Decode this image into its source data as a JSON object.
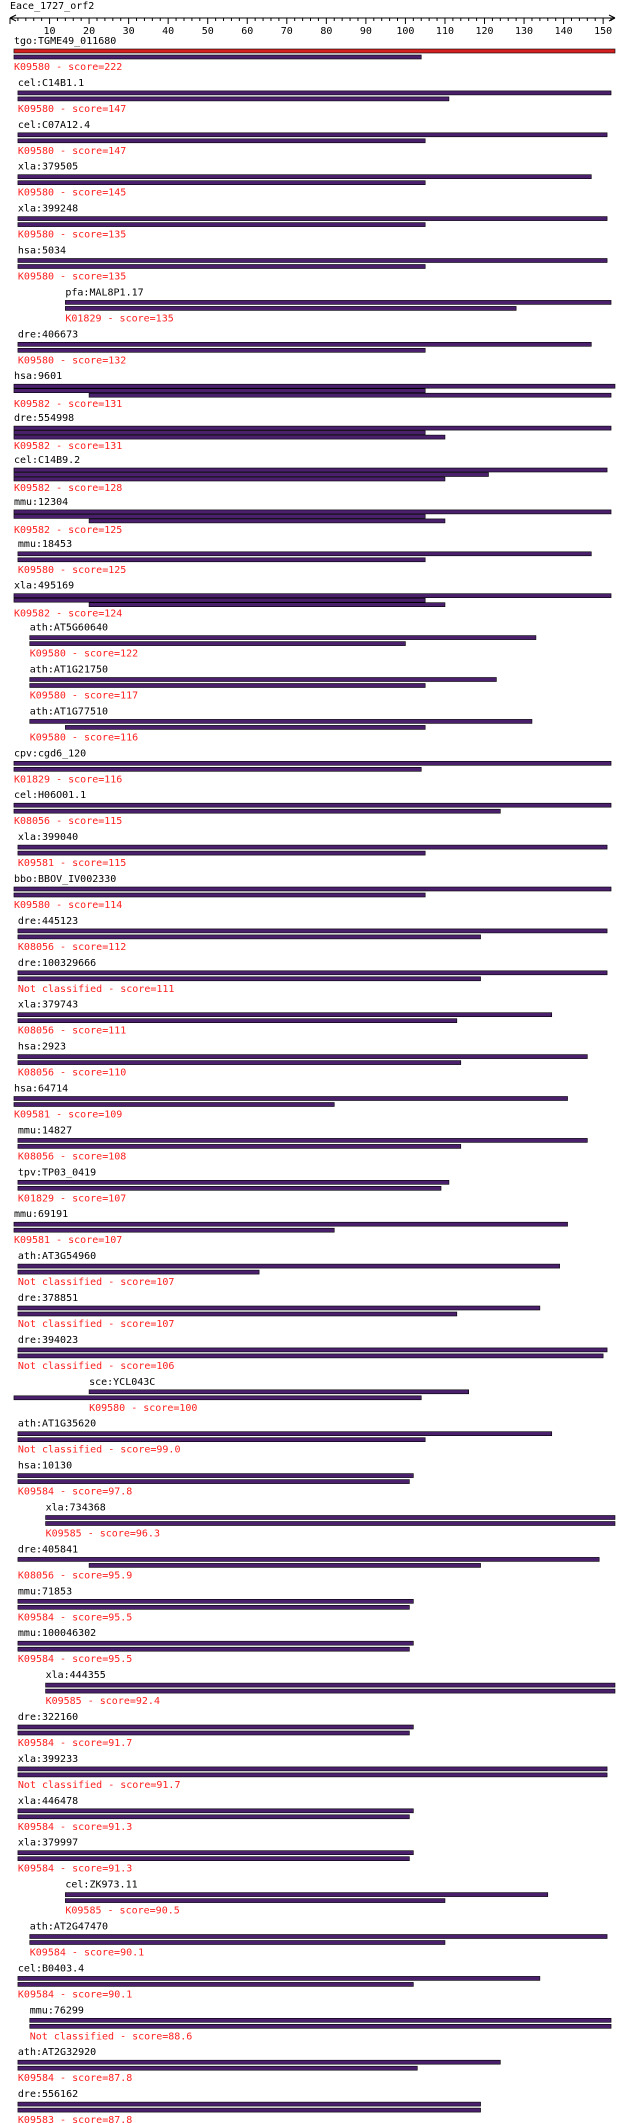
{
  "chart_data": {
    "type": "bar",
    "title": "Eace_1727_orf2",
    "xlim": [
      0,
      153
    ],
    "xticks": [
      10,
      20,
      30,
      40,
      50,
      60,
      70,
      80,
      90,
      100,
      110,
      120,
      130,
      140,
      150
    ],
    "colors": {
      "query_bar": "#d42020",
      "hit_bar": "#4a1f6b",
      "score_text": "#ff2020",
      "axis": "#000000"
    },
    "hits": [
      {
        "name": "tgo:TGME49_011680",
        "score_label": "K09580 - score=222",
        "query": [
          1,
          153
        ],
        "hit": [
          1,
          104
        ],
        "query_color": "red"
      },
      {
        "name": "cel:C14B1.1",
        "score_label": "K09580 - score=147",
        "query": [
          2,
          152
        ],
        "hit": [
          2,
          111
        ]
      },
      {
        "name": "cel:C07A12.4",
        "score_label": "K09580 - score=147",
        "query": [
          2,
          151
        ],
        "hit": [
          2,
          105
        ]
      },
      {
        "name": "xla:379505",
        "score_label": "K09580 - score=145",
        "query": [
          2,
          147
        ],
        "hit": [
          2,
          105
        ]
      },
      {
        "name": "xla:399248",
        "score_label": "K09580 - score=135",
        "query": [
          2,
          151
        ],
        "hit": [
          2,
          105
        ]
      },
      {
        "name": "hsa:5034",
        "score_label": "K09580 - score=135",
        "query": [
          2,
          151
        ],
        "hit": [
          2,
          105
        ]
      },
      {
        "name": "pfa:MAL8P1.17",
        "score_label": "K01829 - score=135",
        "query": [
          14,
          152
        ],
        "hit": [
          14,
          128
        ]
      },
      {
        "name": "dre:406673",
        "score_label": "K09580 - score=132",
        "query": [
          2,
          147
        ],
        "hit": [
          2,
          105
        ]
      },
      {
        "name": "hsa:9601",
        "score_label": "K09582 - score=131",
        "query": [
          1,
          153
        ],
        "hit": [
          20,
          152
        ],
        "extra": [
          1,
          105
        ]
      },
      {
        "name": "dre:554998",
        "score_label": "K09582 - score=131",
        "query": [
          1,
          152
        ],
        "hit": [
          1,
          110
        ],
        "extra": [
          1,
          105
        ]
      },
      {
        "name": "cel:C14B9.2",
        "score_label": "K09582 - score=128",
        "query": [
          1,
          151
        ],
        "hit": [
          1,
          110
        ],
        "extra": [
          1,
          121
        ]
      },
      {
        "name": "mmu:12304",
        "score_label": "K09582 - score=125",
        "query": [
          1,
          152
        ],
        "hit": [
          20,
          110
        ],
        "extra": [
          1,
          105
        ]
      },
      {
        "name": "mmu:18453",
        "score_label": "K09580 - score=125",
        "query": [
          2,
          147
        ],
        "hit": [
          2,
          105
        ]
      },
      {
        "name": "xla:495169",
        "score_label": "K09582 - score=124",
        "query": [
          1,
          152
        ],
        "hit": [
          20,
          110
        ],
        "extra": [
          1,
          105
        ]
      },
      {
        "name": "ath:AT5G60640",
        "score_label": "K09580 - score=122",
        "query": [
          5,
          133
        ],
        "hit": [
          5,
          100
        ]
      },
      {
        "name": "ath:AT1G21750",
        "score_label": "K09580 - score=117",
        "query": [
          5,
          123
        ],
        "hit": [
          5,
          105
        ]
      },
      {
        "name": "ath:AT1G77510",
        "score_label": "K09580 - score=116",
        "query": [
          5,
          132
        ],
        "hit": [
          14,
          105
        ]
      },
      {
        "name": "cpv:cgd6_120",
        "score_label": "K01829 - score=116",
        "query": [
          1,
          152
        ],
        "hit": [
          1,
          104
        ]
      },
      {
        "name": "cel:H06O01.1",
        "score_label": "K08056 - score=115",
        "query": [
          1,
          152
        ],
        "hit": [
          1,
          124
        ]
      },
      {
        "name": "xla:399040",
        "score_label": "K09581 - score=115",
        "query": [
          2,
          151
        ],
        "hit": [
          2,
          105
        ]
      },
      {
        "name": "bbo:BBOV_IV002330",
        "score_label": "K09580 - score=114",
        "query": [
          1,
          152
        ],
        "hit": [
          1,
          105
        ]
      },
      {
        "name": "dre:445123",
        "score_label": "K08056 - score=112",
        "query": [
          2,
          151
        ],
        "hit": [
          2,
          119
        ]
      },
      {
        "name": "dre:100329666",
        "score_label": "Not classified - score=111",
        "query": [
          2,
          151
        ],
        "hit": [
          2,
          119
        ]
      },
      {
        "name": "xla:379743",
        "score_label": "K08056 - score=111",
        "query": [
          2,
          137
        ],
        "hit": [
          2,
          113
        ]
      },
      {
        "name": "hsa:2923",
        "score_label": "K08056 - score=110",
        "query": [
          2,
          146
        ],
        "hit": [
          2,
          114
        ]
      },
      {
        "name": "hsa:64714",
        "score_label": "K09581 - score=109",
        "query": [
          1,
          141
        ],
        "hit": [
          1,
          82
        ]
      },
      {
        "name": "mmu:14827",
        "score_label": "K08056 - score=108",
        "query": [
          2,
          146
        ],
        "hit": [
          2,
          114
        ]
      },
      {
        "name": "tpv:TP03_0419",
        "score_label": "K01829 - score=107",
        "query": [
          2,
          111
        ],
        "hit": [
          2,
          109
        ]
      },
      {
        "name": "mmu:69191",
        "score_label": "K09581 - score=107",
        "query": [
          1,
          141
        ],
        "hit": [
          1,
          82
        ]
      },
      {
        "name": "ath:AT3G54960",
        "score_label": "Not classified - score=107",
        "query": [
          2,
          139
        ],
        "hit": [
          2,
          63
        ]
      },
      {
        "name": "dre:378851",
        "score_label": "Not classified - score=107",
        "query": [
          2,
          134
        ],
        "hit": [
          2,
          113
        ]
      },
      {
        "name": "dre:394023",
        "score_label": "Not classified - score=106",
        "query": [
          2,
          151
        ],
        "hit": [
          2,
          150
        ]
      },
      {
        "name": "sce:YCL043C",
        "score_label": "K09580 - score=100",
        "query": [
          20,
          116
        ],
        "hit": [
          1,
          104
        ]
      },
      {
        "name": "ath:AT1G35620",
        "score_label": "Not classified - score=99.0",
        "query": [
          2,
          137
        ],
        "hit": [
          2,
          105
        ]
      },
      {
        "name": "hsa:10130",
        "score_label": "K09584 - score=97.8",
        "query": [
          2,
          102
        ],
        "hit": [
          2,
          101
        ]
      },
      {
        "name": "xla:734368",
        "score_label": "K09585 - score=96.3",
        "query": [
          9,
          153
        ],
        "hit": [
          9,
          153
        ]
      },
      {
        "name": "dre:405841",
        "score_label": "K08056 - score=95.9",
        "query": [
          2,
          149
        ],
        "hit": [
          20,
          119
        ]
      },
      {
        "name": "mmu:71853",
        "score_label": "K09584 - score=95.5",
        "query": [
          2,
          102
        ],
        "hit": [
          2,
          101
        ]
      },
      {
        "name": "mmu:100046302",
        "score_label": "K09584 - score=95.5",
        "query": [
          2,
          102
        ],
        "hit": [
          2,
          101
        ]
      },
      {
        "name": "xla:444355",
        "score_label": "K09585 - score=92.4",
        "query": [
          9,
          153
        ],
        "hit": [
          9,
          153
        ]
      },
      {
        "name": "dre:322160",
        "score_label": "K09584 - score=91.7",
        "query": [
          2,
          102
        ],
        "hit": [
          2,
          101
        ]
      },
      {
        "name": "xla:399233",
        "score_label": "Not classified - score=91.7",
        "query": [
          2,
          151
        ],
        "hit": [
          2,
          151
        ]
      },
      {
        "name": "xla:446478",
        "score_label": "K09584 - score=91.3",
        "query": [
          2,
          102
        ],
        "hit": [
          2,
          101
        ]
      },
      {
        "name": "xla:379997",
        "score_label": "K09584 - score=91.3",
        "query": [
          2,
          102
        ],
        "hit": [
          2,
          101
        ]
      },
      {
        "name": "cel:ZK973.11",
        "score_label": "K09585 - score=90.5",
        "query": [
          14,
          136
        ],
        "hit": [
          14,
          110
        ]
      },
      {
        "name": "ath:AT2G47470",
        "score_label": "K09584 - score=90.1",
        "query": [
          5,
          151
        ],
        "hit": [
          5,
          110
        ]
      },
      {
        "name": "cel:B0403.4",
        "score_label": "K09584 - score=90.1",
        "query": [
          2,
          134
        ],
        "hit": [
          2,
          102
        ]
      },
      {
        "name": "mmu:76299",
        "score_label": "Not classified - score=88.6",
        "query": [
          5,
          152
        ],
        "hit": [
          5,
          152
        ]
      },
      {
        "name": "ath:AT2G32920",
        "score_label": "K09584 - score=87.8",
        "query": [
          2,
          124
        ],
        "hit": [
          2,
          103
        ]
      },
      {
        "name": "dre:556162",
        "score_label": "K09583 - score=87.8",
        "query": [
          2,
          119
        ],
        "hit": [
          2,
          119
        ]
      }
    ]
  }
}
